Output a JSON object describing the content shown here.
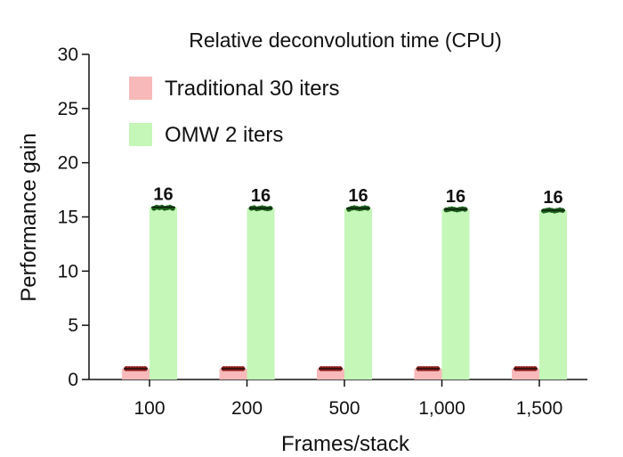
{
  "chart_data": {
    "type": "bar",
    "title": "Relative deconvolution time (CPU)",
    "xlabel": "Frames/stack",
    "ylabel": "Performance gain",
    "ylim": [
      0,
      30
    ],
    "yticks": [
      0,
      5,
      10,
      15,
      20,
      25,
      30
    ],
    "categories": [
      "100",
      "200",
      "500",
      "1,000",
      "1,500"
    ],
    "grid": false,
    "legend_position": "top-left",
    "series": [
      {
        "name": "Traditional 30 iters",
        "color": "#f7b9b9",
        "point_color": "#8a1a1a",
        "values": [
          1,
          1,
          1,
          1,
          1
        ],
        "points": [
          [
            1,
            1,
            1,
            1,
            1,
            1,
            1,
            1
          ],
          [
            1,
            1,
            1,
            1,
            1,
            1,
            1,
            1
          ],
          [
            1,
            1,
            1,
            1,
            1,
            1,
            1,
            1
          ],
          [
            1,
            1,
            1,
            1,
            1,
            1,
            1,
            1
          ],
          [
            1,
            1,
            1,
            1,
            1,
            1,
            1,
            1
          ]
        ]
      },
      {
        "name": "OMW 2 iters",
        "color": "#c4f7b8",
        "point_color": "#1a5c1a",
        "values": [
          15.9,
          15.8,
          15.8,
          15.7,
          15.6
        ],
        "data_labels": [
          "16",
          "16",
          "16",
          "16",
          "16"
        ],
        "points": [
          [
            15.8,
            15.9,
            15.85,
            15.9,
            15.8,
            15.85,
            15.9,
            15.8
          ],
          [
            15.8,
            15.85,
            15.75,
            15.8,
            15.85,
            15.8,
            15.75,
            15.8
          ],
          [
            15.7,
            15.8,
            15.85,
            15.8,
            15.75,
            15.8,
            15.85,
            15.8
          ],
          [
            15.65,
            15.7,
            15.75,
            15.7,
            15.65,
            15.7,
            15.75,
            15.7
          ],
          [
            15.55,
            15.6,
            15.65,
            15.6,
            15.55,
            15.6,
            15.65,
            15.6
          ]
        ]
      }
    ]
  }
}
